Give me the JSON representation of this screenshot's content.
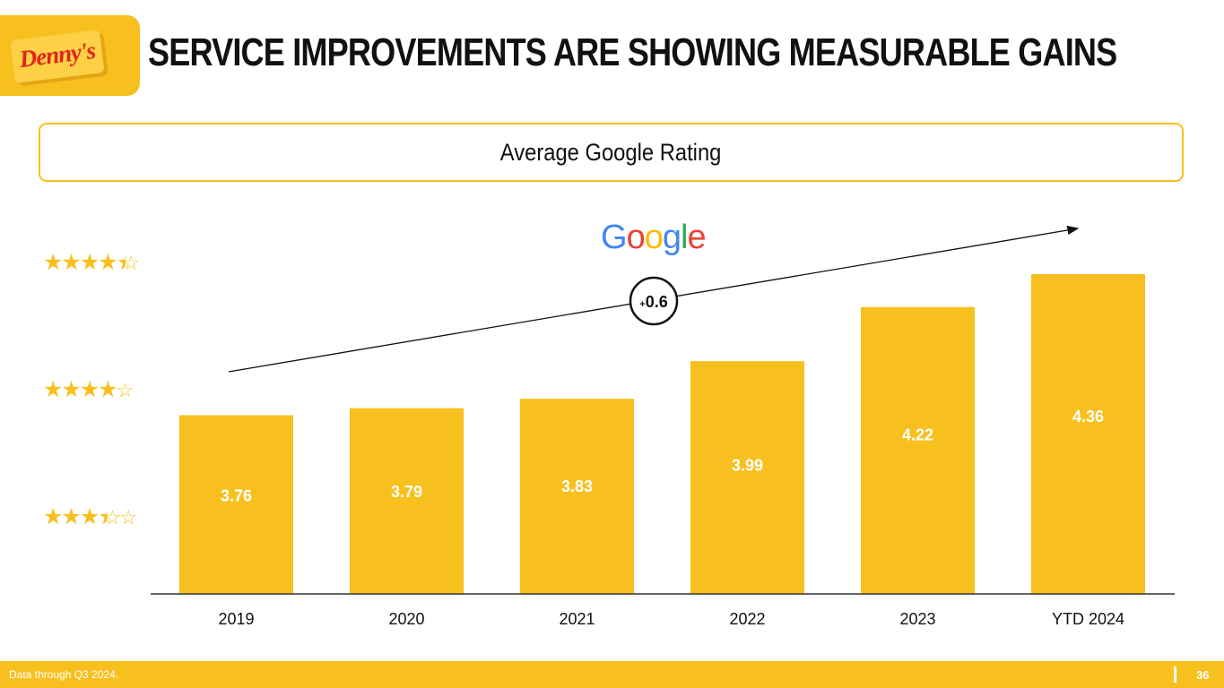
{
  "header": {
    "logo_text": "Denny's",
    "title": "SERVICE IMPROVEMENTS ARE SHOWING MEASURABLE GAINS"
  },
  "subtitle": "Average Google Rating",
  "google_logo": {
    "letters": [
      "G",
      "o",
      "o",
      "g",
      "l",
      "e"
    ],
    "colors": [
      "#4285F4",
      "#EA4335",
      "#FBBC05",
      "#4285F4",
      "#34A853",
      "#EA4335"
    ]
  },
  "star_scale": [
    {
      "rating": 4.5,
      "filled": "★★★★",
      "half": "★",
      "empty": ""
    },
    {
      "rating": 4.0,
      "filled": "★★★★",
      "half": "",
      "empty": "☆"
    },
    {
      "rating": 3.5,
      "filled": "★★★",
      "half": "★",
      "empty": "☆"
    }
  ],
  "chart_data": {
    "type": "bar",
    "title": "Average Google Rating",
    "categories": [
      "2019",
      "2020",
      "2021",
      "2022",
      "2023",
      "YTD 2024"
    ],
    "values": [
      3.76,
      3.79,
      3.83,
      3.99,
      4.22,
      4.36
    ],
    "value_labels": [
      "3.76",
      "3.79",
      "3.83",
      "3.99",
      "4.22",
      "4.36"
    ],
    "ylim": [
      3.2,
      4.6
    ],
    "xlabel": "",
    "ylabel": "",
    "grid": false,
    "annotation": {
      "prefix": "+",
      "value": "0.6"
    },
    "bar_color": "#F7C01F"
  },
  "footer": {
    "note": "Data through Q3 2024.",
    "page_number": "36"
  },
  "colors": {
    "brand_yellow": "#F7C01F",
    "brand_red": "#E2231A"
  }
}
